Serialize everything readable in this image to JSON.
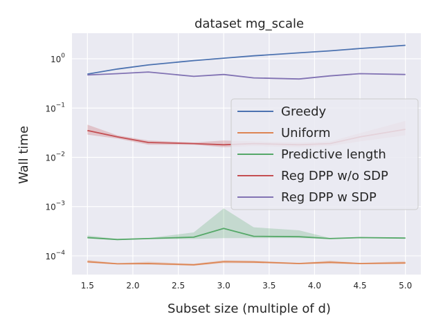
{
  "chart_data": {
    "type": "line",
    "title": "dataset mg_scale",
    "xlabel": "Subset size (multiple of d)",
    "ylabel": "Wall time",
    "yscale": "log",
    "xlim": [
      1.33,
      5.17
    ],
    "ylim_log10": [
      -4.38,
      0.52
    ],
    "grid": true,
    "legend_position": "center-right",
    "x_ticks": [
      1.5,
      2.0,
      2.5,
      3.0,
      3.5,
      4.0,
      4.5,
      5.0
    ],
    "x_tick_labels": [
      "1.5",
      "2.0",
      "2.5",
      "3.0",
      "3.5",
      "4.0",
      "4.5",
      "5.0"
    ],
    "y_ticks": [
      {
        "base": "10",
        "exp": "0",
        "log10": 0
      },
      {
        "base": "10",
        "exp": "−1",
        "log10": -1
      },
      {
        "base": "10",
        "exp": "−2",
        "log10": -2
      },
      {
        "base": "10",
        "exp": "−3",
        "log10": -3
      },
      {
        "base": "10",
        "exp": "−4",
        "log10": -4
      }
    ],
    "x": [
      1.5,
      1.83,
      2.17,
      2.67,
      3.0,
      3.33,
      3.83,
      4.17,
      4.5,
      5.0
    ],
    "series": [
      {
        "name": "Greedy",
        "color": "#4c72b0",
        "values": [
          0.49,
          0.62,
          0.75,
          0.92,
          1.03,
          1.15,
          1.32,
          1.45,
          1.62,
          1.88
        ],
        "lower": [
          0.48,
          0.61,
          0.74,
          0.91,
          1.02,
          1.14,
          1.31,
          1.44,
          1.61,
          1.86
        ],
        "upper": [
          0.5,
          0.63,
          0.76,
          0.93,
          1.04,
          1.16,
          1.33,
          1.46,
          1.63,
          1.9
        ]
      },
      {
        "name": "Uniform",
        "color": "#dd8452",
        "values": [
          7.6e-05,
          6.9e-05,
          7e-05,
          6.6e-05,
          7.6e-05,
          7.5e-05,
          7e-05,
          7.4e-05,
          7e-05,
          7.2e-05
        ],
        "lower": [
          7.2e-05,
          6.7e-05,
          6.6e-05,
          6.3e-05,
          7.1e-05,
          7.1e-05,
          6.8e-05,
          6.9e-05,
          6.8e-05,
          6.8e-05
        ],
        "upper": [
          8.3e-05,
          7.1e-05,
          7.6e-05,
          6.9e-05,
          8.2e-05,
          8e-05,
          7.2e-05,
          8e-05,
          7.2e-05,
          7.8e-05
        ]
      },
      {
        "name": "Predictive length",
        "color": "#55a868",
        "values": [
          0.000235,
          0.000215,
          0.000225,
          0.00024,
          0.00036,
          0.00025,
          0.000245,
          0.000225,
          0.000235,
          0.00023
        ],
        "lower": [
          0.000225,
          0.00021,
          0.00022,
          0.00022,
          0.00023,
          0.00023,
          0.00023,
          0.00022,
          0.00023,
          0.000225
        ],
        "upper": [
          0.00026,
          0.00022,
          0.00023,
          0.0003,
          0.00092,
          0.00038,
          0.00033,
          0.00023,
          0.00024,
          0.000235
        ]
      },
      {
        "name": "Reg DPP w/o SDP",
        "color": "#c44e52",
        "values": [
          0.035,
          0.026,
          0.02,
          0.019,
          0.018,
          0.019,
          0.018,
          0.019,
          0.026,
          0.037
        ],
        "lower": [
          0.029,
          0.024,
          0.018,
          0.018,
          0.016,
          0.017,
          0.016,
          0.017,
          0.021,
          0.028
        ],
        "upper": [
          0.046,
          0.028,
          0.022,
          0.02,
          0.022,
          0.021,
          0.02,
          0.021,
          0.031,
          0.055
        ]
      },
      {
        "name": "Reg DPP w SDP",
        "color": "#8172b3",
        "values": [
          0.47,
          0.5,
          0.54,
          0.44,
          0.48,
          0.41,
          0.39,
          0.45,
          0.5,
          0.48
        ],
        "lower": [
          0.46,
          0.49,
          0.53,
          0.43,
          0.47,
          0.4,
          0.38,
          0.44,
          0.49,
          0.47
        ],
        "upper": [
          0.48,
          0.51,
          0.55,
          0.45,
          0.49,
          0.42,
          0.4,
          0.46,
          0.51,
          0.49
        ]
      }
    ]
  }
}
